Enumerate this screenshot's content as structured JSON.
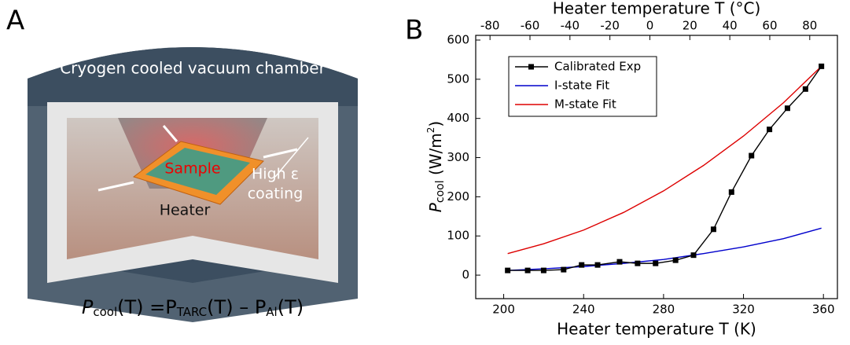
{
  "diagram": {
    "panel_label": "A",
    "chamber_label": "Cryogen cooled vacuum chamber",
    "sample_label": "Sample",
    "coating_label": [
      "High ε",
      "coating"
    ],
    "heater_label": "Heater",
    "formula": [
      "P",
      "cool",
      "(T) =P",
      "TARC",
      "(T) – P",
      "Al",
      "(T)"
    ]
  },
  "chart_data": {
    "type": "line",
    "panel_label": "B",
    "xlabel": "Heater temperature T (K)",
    "x2label": "Heater temperature T (°C)",
    "ylabel": [
      "P",
      "cool",
      " (W/m",
      "2",
      ")"
    ],
    "xlim": [
      186,
      367
    ],
    "xticks": [
      200,
      240,
      280,
      320,
      360
    ],
    "x2lim": [
      -87.15,
      93.85
    ],
    "x2ticks": [
      -80,
      -60,
      -40,
      -20,
      0,
      20,
      40,
      60,
      80
    ],
    "ylim": [
      -60,
      612
    ],
    "yticks": [
      0,
      100,
      200,
      300,
      400,
      500,
      600
    ],
    "legend": "upper left",
    "series": [
      {
        "name": "Calibrated Exp",
        "color": "#000000",
        "marker": "square",
        "x": [
          202,
          212,
          220,
          230,
          239,
          247,
          258,
          267,
          276,
          286,
          295,
          305,
          314,
          324,
          333,
          342,
          351,
          359
        ],
        "values": [
          12,
          12,
          12,
          14,
          26,
          26,
          34,
          30,
          30,
          38,
          51,
          117,
          212,
          305,
          372,
          426,
          475,
          533
        ]
      },
      {
        "name": "I-state Fit",
        "color": "#0000cc",
        "x": [
          202,
          220,
          240,
          260,
          280,
          300,
          320,
          340,
          359
        ],
        "values": [
          12,
          16,
          22,
          30,
          40,
          55,
          72,
          93,
          120
        ]
      },
      {
        "name": "M-state Fit",
        "color": "#dd0000",
        "x": [
          202,
          220,
          240,
          260,
          280,
          300,
          320,
          340,
          359
        ],
        "values": [
          55,
          80,
          115,
          160,
          215,
          280,
          355,
          440,
          533
        ]
      }
    ]
  }
}
